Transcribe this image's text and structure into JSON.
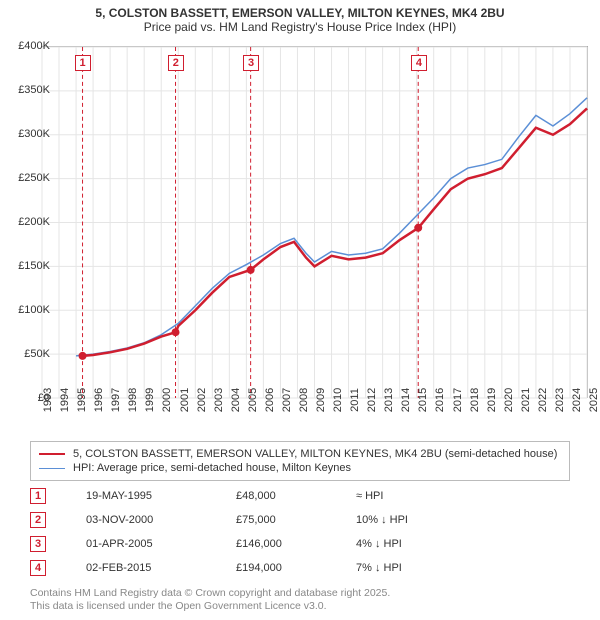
{
  "title": {
    "line1": "5, COLSTON BASSETT, EMERSON VALLEY, MILTON KEYNES, MK4 2BU",
    "line2": "Price paid vs. HM Land Registry's House Price Index (HPI)",
    "fontsize": 12,
    "color": "#333333"
  },
  "chart": {
    "type": "line",
    "background_color": "#ffffff",
    "grid_color": "#e5e5e5",
    "border_color": "#aaaaaa",
    "x_axis": {
      "min": 1993,
      "max": 2025,
      "tick_step": 1,
      "labels": [
        "1993",
        "1994",
        "1995",
        "1996",
        "1997",
        "1998",
        "1999",
        "2000",
        "2001",
        "2002",
        "2003",
        "2004",
        "2005",
        "2006",
        "2007",
        "2008",
        "2009",
        "2010",
        "2011",
        "2012",
        "2013",
        "2014",
        "2015",
        "2016",
        "2017",
        "2018",
        "2019",
        "2020",
        "2021",
        "2022",
        "2023",
        "2024",
        "2025"
      ],
      "fontsize": 11,
      "rotation": -90
    },
    "y_axis": {
      "min": 0,
      "max": 400000,
      "tick_step": 50000,
      "labels": [
        "£0",
        "£50K",
        "£100K",
        "£150K",
        "£200K",
        "£250K",
        "£300K",
        "£350K",
        "£400K"
      ],
      "fontsize": 11
    },
    "series": [
      {
        "name": "property",
        "label": "5, COLSTON BASSETT, EMERSON VALLEY, MILTON KEYNES, MK4 2BU (semi-detached house)",
        "color": "#d01e2f",
        "line_width": 2.5,
        "points": [
          [
            1995.4,
            48000
          ],
          [
            1996,
            49000
          ],
          [
            1997,
            52000
          ],
          [
            1998,
            56000
          ],
          [
            1999,
            62000
          ],
          [
            2000,
            70000
          ],
          [
            2000.85,
            75000
          ],
          [
            2001,
            82000
          ],
          [
            2002,
            100000
          ],
          [
            2003,
            120000
          ],
          [
            2004,
            138000
          ],
          [
            2005.25,
            146000
          ],
          [
            2006,
            158000
          ],
          [
            2007,
            172000
          ],
          [
            2007.8,
            178000
          ],
          [
            2008.5,
            160000
          ],
          [
            2009,
            150000
          ],
          [
            2010,
            162000
          ],
          [
            2011,
            158000
          ],
          [
            2012,
            160000
          ],
          [
            2013,
            165000
          ],
          [
            2014,
            180000
          ],
          [
            2015.1,
            194000
          ],
          [
            2016,
            215000
          ],
          [
            2017,
            238000
          ],
          [
            2018,
            250000
          ],
          [
            2019,
            255000
          ],
          [
            2020,
            262000
          ],
          [
            2021,
            285000
          ],
          [
            2022,
            308000
          ],
          [
            2023,
            300000
          ],
          [
            2024,
            312000
          ],
          [
            2025,
            330000
          ]
        ]
      },
      {
        "name": "hpi",
        "label": "HPI: Average price, semi-detached house, Milton Keynes",
        "color": "#5b8fd6",
        "line_width": 1.5,
        "points": [
          [
            1995,
            48000
          ],
          [
            1996,
            50000
          ],
          [
            1997,
            53000
          ],
          [
            1998,
            57000
          ],
          [
            1999,
            63000
          ],
          [
            2000,
            72000
          ],
          [
            2001,
            85000
          ],
          [
            2002,
            105000
          ],
          [
            2003,
            125000
          ],
          [
            2004,
            142000
          ],
          [
            2005,
            152000
          ],
          [
            2006,
            163000
          ],
          [
            2007,
            176000
          ],
          [
            2007.8,
            182000
          ],
          [
            2008.5,
            165000
          ],
          [
            2009,
            155000
          ],
          [
            2010,
            167000
          ],
          [
            2011,
            163000
          ],
          [
            2012,
            165000
          ],
          [
            2013,
            170000
          ],
          [
            2014,
            188000
          ],
          [
            2015,
            208000
          ],
          [
            2016,
            228000
          ],
          [
            2017,
            250000
          ],
          [
            2018,
            262000
          ],
          [
            2019,
            266000
          ],
          [
            2020,
            272000
          ],
          [
            2021,
            298000
          ],
          [
            2022,
            322000
          ],
          [
            2023,
            310000
          ],
          [
            2024,
            324000
          ],
          [
            2025,
            342000
          ]
        ]
      }
    ],
    "markers": [
      {
        "n": "1",
        "x": 1995.38,
        "y": 48000,
        "date": "19-MAY-1995",
        "price": "£48,000",
        "delta": "≈ HPI"
      },
      {
        "n": "2",
        "x": 2000.84,
        "y": 75000,
        "date": "03-NOV-2000",
        "price": "£75,000",
        "delta": "10% ↓ HPI"
      },
      {
        "n": "3",
        "x": 2005.25,
        "y": 146000,
        "date": "01-APR-2005",
        "price": "£146,000",
        "delta": "4% ↓ HPI"
      },
      {
        "n": "4",
        "x": 2015.09,
        "y": 194000,
        "date": "02-FEB-2015",
        "price": "£194,000",
        "delta": "7% ↓ HPI"
      }
    ],
    "marker_style": {
      "line_color": "#d01e2f",
      "line_dash": "4 3",
      "badge_border": "#d01e2f",
      "badge_bg": "#ffffff",
      "dot_color": "#d01e2f",
      "dot_radius": 4
    }
  },
  "legend": {
    "border_color": "#bbbbbb",
    "fontsize": 11
  },
  "footer": {
    "line1": "Contains HM Land Registry data © Crown copyright and database right 2025.",
    "line2": "This data is licensed under the Open Government Licence v3.0.",
    "color": "#888888",
    "fontsize": 10.5
  }
}
